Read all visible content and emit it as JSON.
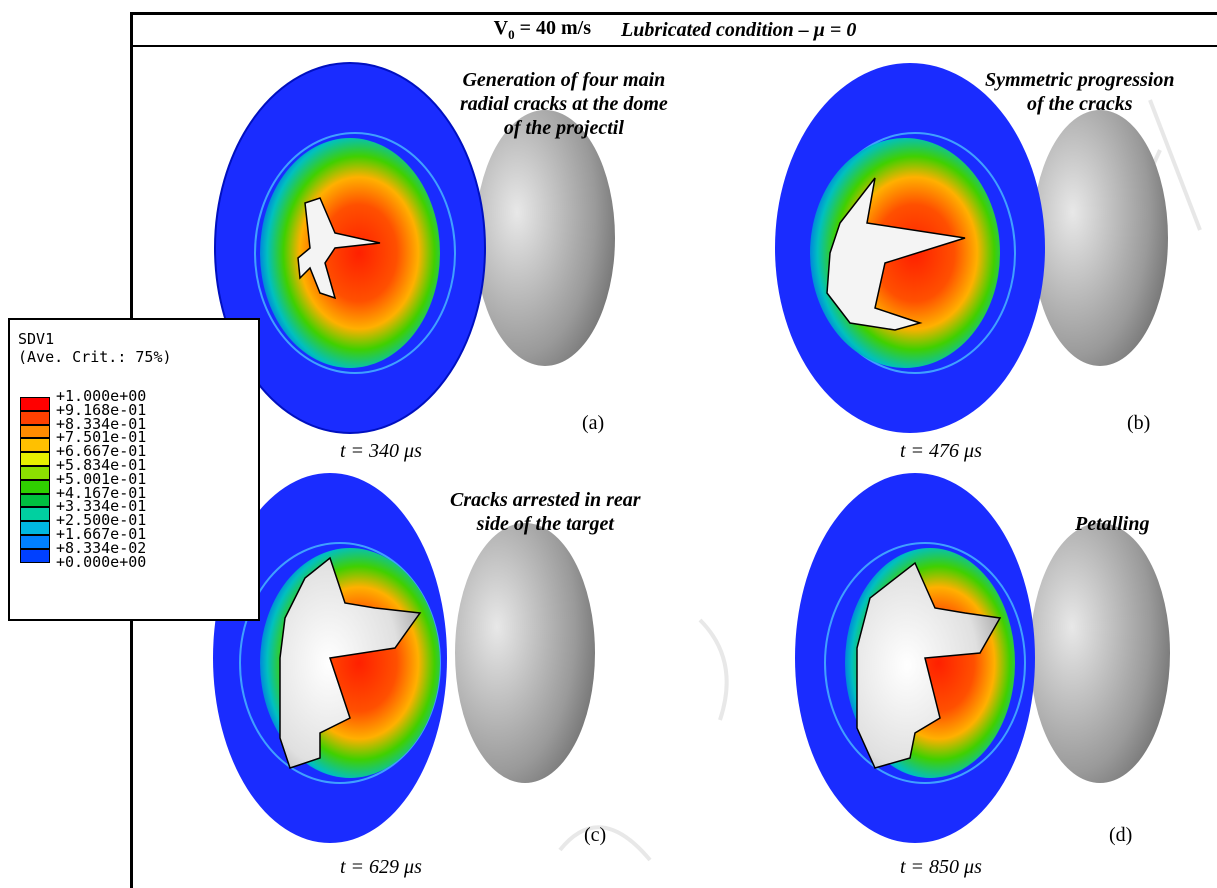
{
  "header": {
    "velocity_prefix": "V",
    "velocity_sub": "0",
    "velocity_value": " = 40 m/s",
    "condition": "Lubricated condition – μ = 0"
  },
  "legend": {
    "title_line1": "SDV1",
    "title_line2": "(Ave. Crit.: 75%)",
    "values": [
      "+1.000e+00",
      "+9.168e-01",
      "+8.334e-01",
      "+7.501e-01",
      "+6.667e-01",
      "+5.834e-01",
      "+5.001e-01",
      "+4.167e-01",
      "+3.334e-01",
      "+2.500e-01",
      "+1.667e-01",
      "+8.334e-02",
      "+0.000e+00"
    ],
    "colors": [
      "#ff0000",
      "#ff4000",
      "#ff8c00",
      "#ffc000",
      "#e8f000",
      "#8ce000",
      "#30d000",
      "#00c040",
      "#00d0a0",
      "#00b8e0",
      "#0080ff",
      "#0040ff",
      "#0000ff"
    ]
  },
  "panels": [
    {
      "letter": "(a)",
      "time": "t = 340 μs",
      "annotation": [
        "Generation of four main",
        "radial cracks at the dome",
        "of the projectil"
      ]
    },
    {
      "letter": "(b)",
      "time": "t = 476 μs",
      "annotation": [
        "Symmetric progression",
        "of the cracks"
      ]
    },
    {
      "letter": "(c)",
      "time": "t = 629 μs",
      "annotation": [
        "Cracks arrested in rear",
        "side of the target"
      ]
    },
    {
      "letter": "(d)",
      "time": "t = 850  μs",
      "annotation": [
        "Petalling"
      ]
    }
  ]
}
